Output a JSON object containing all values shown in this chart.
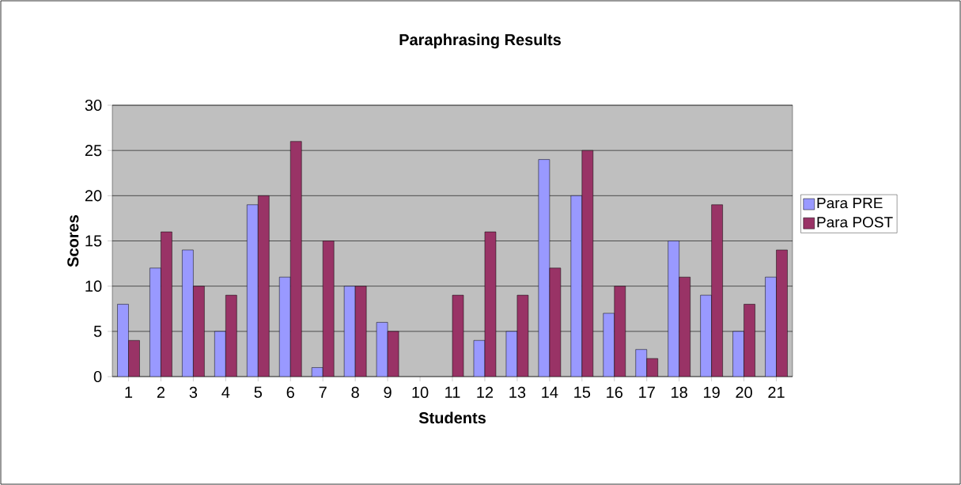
{
  "chart_data": {
    "type": "bar",
    "title": "Paraphrasing Results",
    "xlabel": "Students",
    "ylabel": "Scores",
    "categories": [
      "1",
      "2",
      "3",
      "4",
      "5",
      "6",
      "7",
      "8",
      "9",
      "10",
      "11",
      "12",
      "13",
      "14",
      "15",
      "16",
      "17",
      "18",
      "19",
      "20",
      "21"
    ],
    "series": [
      {
        "name": "Para PRE",
        "color": "#9999ff",
        "values": [
          8,
          12,
          14,
          5,
          19,
          11,
          1,
          10,
          6,
          null,
          null,
          4,
          5,
          24,
          20,
          7,
          3,
          15,
          9,
          5,
          11
        ]
      },
      {
        "name": "Para POST",
        "color": "#993366",
        "values": [
          4,
          16,
          10,
          9,
          20,
          26,
          15,
          10,
          5,
          null,
          9,
          16,
          9,
          12,
          25,
          10,
          2,
          11,
          19,
          8,
          14
        ]
      }
    ],
    "ylim": [
      0,
      30
    ],
    "yticks": [
      0,
      5,
      10,
      15,
      20,
      25,
      30
    ],
    "grid": "y",
    "legend": "right"
  }
}
